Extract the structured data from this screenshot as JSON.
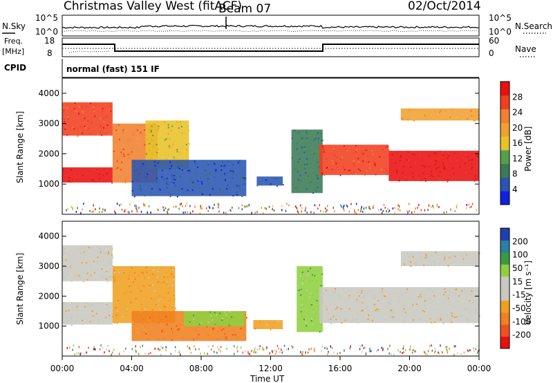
{
  "header": {
    "title": "Christmas Valley West (fitACF)",
    "beam": "Beam 07",
    "date": "02/Oct/2014"
  },
  "nsky_panel": {
    "left_label": "N.Sky",
    "right_label": "N.Search",
    "ytick_top": "10^5",
    "ytick_bottom": "10^0"
  },
  "freq_panel": {
    "left_label_line1": "Freq.",
    "left_label_line2": "[MHz]",
    "right_label": "Nave",
    "left_ticks": [
      "18",
      "8"
    ],
    "right_ticks": [
      "60",
      "0"
    ]
  },
  "cpid": {
    "label": "CPID",
    "mode": "normal (fast) 151 IF"
  },
  "x_axis": {
    "label": "Time UT",
    "ticks": [
      "00:00",
      "04:00",
      "08:00",
      "12:00",
      "16:00",
      "20:00",
      "00:00"
    ]
  },
  "colors": {
    "power_scale": [
      "#1020e0",
      "#2a55b0",
      "#3a7a55",
      "#55a04a",
      "#e8c228",
      "#f0a030",
      "#f08030",
      "#f04020",
      "#e81010"
    ],
    "velocity_scale": [
      "#e81010",
      "#f05020",
      "#f08020",
      "#f0a020",
      "#c8c8c0",
      "#c8c8c0",
      "#90d040",
      "#3a9a40",
      "#2a80a0",
      "#2040b0"
    ]
  },
  "chart_data": [
    {
      "type": "heatmap",
      "title": "",
      "xlabel": "Time UT",
      "ylabel": "Slant Range [km]",
      "ylim": [
        0,
        4500
      ],
      "yticks": [
        "1000",
        "2000",
        "3000",
        "4000"
      ],
      "colorbar": {
        "label": "Power [dB]",
        "ticks": [
          "4",
          "8",
          "12",
          "16",
          "20",
          "24",
          "28"
        ]
      },
      "bands": [
        {
          "t": [
            0.0,
            2.9
          ],
          "range": [
            2600,
            3700
          ],
          "level": 7
        },
        {
          "t": [
            0.0,
            2.9
          ],
          "range": [
            1050,
            1550
          ],
          "level": 8
        },
        {
          "t": [
            2.9,
            5.5
          ],
          "range": [
            1050,
            3000
          ],
          "level": 6
        },
        {
          "t": [
            4.8,
            7.3
          ],
          "range": [
            1500,
            3100
          ],
          "level": 4
        },
        {
          "t": [
            4.0,
            10.6
          ],
          "range": [
            600,
            1800
          ],
          "level": 1
        },
        {
          "t": [
            11.2,
            12.7
          ],
          "range": [
            950,
            1250
          ],
          "level": 1
        },
        {
          "t": [
            13.2,
            15.0
          ],
          "range": [
            700,
            2800
          ],
          "level": 2
        },
        {
          "t": [
            14.8,
            18.8
          ],
          "range": [
            1300,
            2300
          ],
          "level": 7
        },
        {
          "t": [
            18.8,
            24.0
          ],
          "range": [
            1100,
            2100
          ],
          "level": 8
        },
        {
          "t": [
            19.5,
            24.0
          ],
          "range": [
            3100,
            3500
          ],
          "level": 5
        }
      ]
    },
    {
      "type": "heatmap",
      "title": "",
      "xlabel": "Time UT",
      "ylabel": "Slant Range [km]",
      "ylim": [
        0,
        4500
      ],
      "yticks": [
        "1000",
        "2000",
        "3000",
        "4000"
      ],
      "colorbar": {
        "label": "Velocity [m s⁻¹]",
        "ticks": [
          "-200",
          "-100",
          "-50",
          "-15",
          "15",
          "50",
          "100",
          "200"
        ]
      },
      "bands": [
        {
          "t": [
            0.0,
            2.9
          ],
          "range": [
            2500,
            3700
          ],
          "level": 4
        },
        {
          "t": [
            0.0,
            2.9
          ],
          "range": [
            1050,
            1800
          ],
          "level": 4
        },
        {
          "t": [
            2.9,
            6.5
          ],
          "range": [
            1100,
            3000
          ],
          "level": 3
        },
        {
          "t": [
            4.0,
            10.6
          ],
          "range": [
            500,
            1500
          ],
          "level": 2
        },
        {
          "t": [
            7.0,
            10.5
          ],
          "range": [
            1000,
            1500
          ],
          "level": 6
        },
        {
          "t": [
            11.0,
            12.7
          ],
          "range": [
            900,
            1200
          ],
          "level": 3
        },
        {
          "t": [
            13.5,
            15.0
          ],
          "range": [
            800,
            3000
          ],
          "level": 6
        },
        {
          "t": [
            14.8,
            24.0
          ],
          "range": [
            1100,
            2300
          ],
          "level": 4
        },
        {
          "t": [
            19.5,
            24.0
          ],
          "range": [
            3000,
            3500
          ],
          "level": 4
        }
      ]
    }
  ]
}
